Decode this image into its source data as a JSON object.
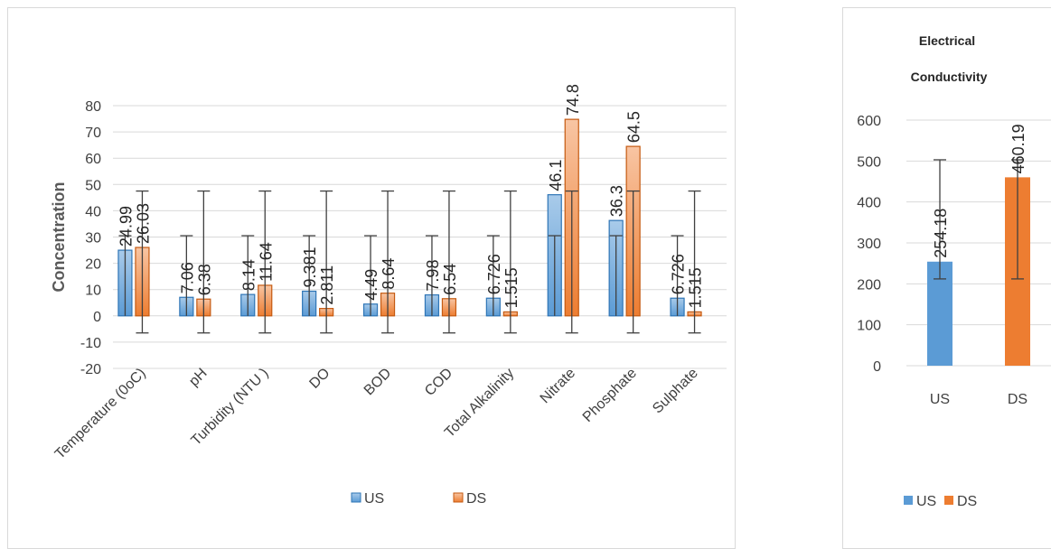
{
  "chart_data": [
    {
      "type": "bar",
      "ylabel": "Concentration",
      "ylim": [
        -20,
        80
      ],
      "yticks": [
        -20,
        -10,
        0,
        10,
        20,
        30,
        40,
        50,
        60,
        70,
        80
      ],
      "grid": true,
      "legend_position": "bottom",
      "categories": [
        "Temperature (0oC)",
        "pH",
        "Turbidity (NTU )",
        "DO",
        "BOD",
        "COD",
        "Total Alkalinity",
        "Nitrate",
        "Phosphate",
        "Sulphate"
      ],
      "series": [
        {
          "name": "US",
          "color": "#5b9bd5",
          "values": [
            24.99,
            7.06,
            8.14,
            9.381,
            4.49,
            7.98,
            6.726,
            46.1,
            36.3,
            6.726
          ],
          "labels": [
            "24.99",
            "7.06",
            "8.14",
            "9.381",
            "4.49",
            "7.98",
            "6.726",
            "46.1",
            "36.3",
            "6.726"
          ],
          "error_bars": [
            0,
            30.5
          ]
        },
        {
          "name": "DS",
          "color": "#ed7d31",
          "values": [
            26.03,
            6.38,
            11.64,
            2.811,
            8.64,
            6.54,
            1.515,
            74.8,
            64.5,
            1.515
          ],
          "labels": [
            "26.03",
            "6.38",
            "11.64",
            "2.811",
            "8.64",
            "6.54",
            "1.515",
            "74.8",
            "64.5",
            "1.515"
          ],
          "error_bars": [
            -6.5,
            47.5
          ]
        }
      ]
    },
    {
      "type": "bar",
      "title_lines": [
        "Electrical",
        "Conductivity"
      ],
      "ylim": [
        0,
        600
      ],
      "yticks": [
        0,
        100,
        200,
        300,
        400,
        500,
        600
      ],
      "grid": true,
      "legend_position": "bottom",
      "categories": [
        "US",
        "DS"
      ],
      "series_names": [
        "US",
        "DS"
      ],
      "colors": [
        "#5b9bd5",
        "#ed7d31"
      ],
      "values": [
        254.18,
        460.19
      ],
      "labels": [
        "254.18",
        "460.19"
      ],
      "error_bars": [
        [
          212,
          503
        ],
        [
          212,
          503
        ]
      ]
    }
  ]
}
